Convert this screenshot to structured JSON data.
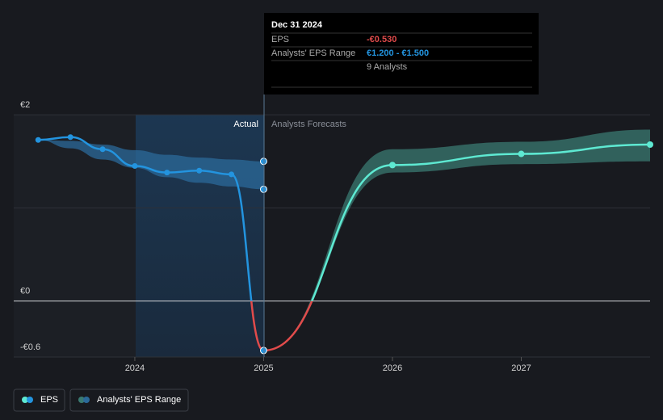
{
  "chart_data": {
    "type": "line",
    "series": [
      {
        "name": "EPS",
        "color": "#2394df",
        "negative_color": "#e14b4b",
        "x": [
          2023.25,
          2023.5,
          2023.75,
          2024,
          2024.25,
          2024.5,
          2024.75,
          2025
        ],
        "values": [
          1.73,
          1.76,
          1.63,
          1.45,
          1.38,
          1.4,
          1.36,
          -0.53
        ]
      }
    ],
    "forecast": {
      "color": "#5ee9d2",
      "range_color": "#3a7a72",
      "x": [
        2025,
        2026,
        2027,
        2028
      ],
      "values": [
        -0.53,
        1.46,
        1.58,
        1.68
      ],
      "low": [
        -0.53,
        1.38,
        1.47,
        1.5
      ],
      "high": [
        -0.53,
        1.63,
        1.71,
        1.84
      ]
    },
    "range": {
      "name": "Analysts' EPS Range",
      "color": "#2b6a9a",
      "x": [
        2023.25,
        2023.5,
        2023.75,
        2024,
        2024.25,
        2024.5,
        2024.75,
        2025
      ],
      "low": [
        1.73,
        1.64,
        1.52,
        1.43,
        1.33,
        1.27,
        1.23,
        1.2
      ],
      "high": [
        1.73,
        1.72,
        1.68,
        1.62,
        1.57,
        1.54,
        1.52,
        1.5
      ]
    },
    "labels": {
      "actual": "Actual",
      "forecast": "Analysts Forecasts"
    },
    "tooltip": {
      "date": "Dec 31 2024",
      "rows": [
        {
          "label": "EPS",
          "value": "-€0.530"
        },
        {
          "label": "Analysts' EPS Range",
          "value": "€1.200 - €1.500"
        }
      ],
      "note": "9 Analysts"
    },
    "xlim": [
      2023.06,
      2028
    ],
    "xticks": [
      2024,
      2025,
      2026,
      2027
    ],
    "ylim": [
      -0.6,
      2.2
    ],
    "yticks": [
      {
        "value": 2,
        "label": "€2"
      },
      {
        "value": 1,
        "label": null
      },
      {
        "value": 0,
        "label": "€0"
      },
      {
        "value": -0.6,
        "label": "-€0.6"
      }
    ],
    "grid": true
  }
}
